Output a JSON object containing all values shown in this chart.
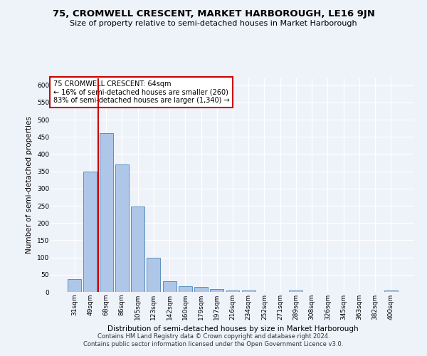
{
  "title": "75, CROMWELL CRESCENT, MARKET HARBOROUGH, LE16 9JN",
  "subtitle": "Size of property relative to semi-detached houses in Market Harborough",
  "xlabel": "Distribution of semi-detached houses by size in Market Harborough",
  "ylabel": "Number of semi-detached properties",
  "footer_line1": "Contains HM Land Registry data © Crown copyright and database right 2024.",
  "footer_line2": "Contains public sector information licensed under the Open Government Licence v3.0.",
  "annotation_line1": "75 CROMWELL CRESCENT: 64sqm",
  "annotation_line2": "← 16% of semi-detached houses are smaller (260)",
  "annotation_line3": "83% of semi-detached houses are larger (1,340) →",
  "categories": [
    "31sqm",
    "49sqm",
    "68sqm",
    "86sqm",
    "105sqm",
    "123sqm",
    "142sqm",
    "160sqm",
    "179sqm",
    "197sqm",
    "216sqm",
    "234sqm",
    "252sqm",
    "271sqm",
    "289sqm",
    "308sqm",
    "326sqm",
    "345sqm",
    "363sqm",
    "382sqm",
    "400sqm"
  ],
  "values": [
    38,
    350,
    460,
    370,
    248,
    100,
    30,
    17,
    14,
    8,
    5,
    5,
    0,
    0,
    5,
    0,
    0,
    0,
    0,
    0,
    5
  ],
  "bar_color": "#aec6e8",
  "bar_edge_color": "#5a8fc2",
  "redline_x": 1.5,
  "ylim": [
    0,
    620
  ],
  "yticks": [
    0,
    50,
    100,
    150,
    200,
    250,
    300,
    350,
    400,
    450,
    500,
    550,
    600
  ],
  "background_color": "#eef2f9",
  "grid_color": "#ffffff",
  "title_fontsize": 9.5,
  "subtitle_fontsize": 8,
  "axis_label_fontsize": 7.5,
  "tick_fontsize": 6.5,
  "footer_fontsize": 6,
  "annotation_fontsize": 7,
  "annotation_box_color": "#ffffff",
  "annotation_box_edgecolor": "#cc0000",
  "redline_color": "#cc0000"
}
